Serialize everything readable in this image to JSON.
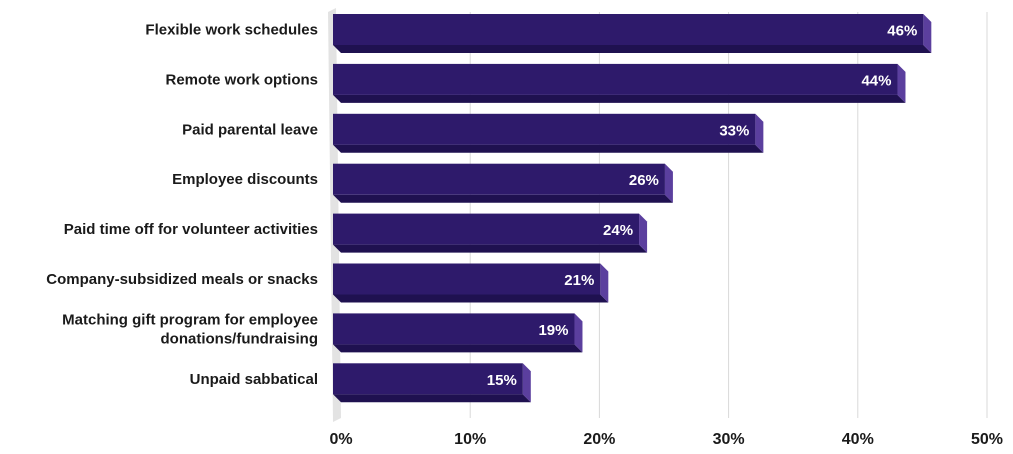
{
  "chart_data": {
    "type": "bar",
    "orientation": "horizontal",
    "categories": [
      "Flexible work schedules",
      "Remote work options",
      "Paid parental leave",
      "Employee discounts",
      "Paid time off for volunteer activities",
      "Company-subsidized meals or snacks",
      "Matching gift program for employee donations/fundraising",
      "Unpaid sabbatical"
    ],
    "category_lines": [
      [
        "Flexible work schedules"
      ],
      [
        "Remote work options"
      ],
      [
        "Paid parental leave"
      ],
      [
        "Employee discounts"
      ],
      [
        "Paid time off for volunteer activities"
      ],
      [
        "Company-subsidized meals or snacks"
      ],
      [
        "Matching gift program for employee",
        "donations/fundraising"
      ],
      [
        "Unpaid sabbatical"
      ]
    ],
    "values": [
      46,
      44,
      33,
      26,
      24,
      21,
      19,
      15
    ],
    "data_labels": [
      "46%",
      "44%",
      "33%",
      "26%",
      "24%",
      "21%",
      "19%",
      "15%"
    ],
    "xlim": [
      0,
      50
    ],
    "x_ticks": [
      0,
      10,
      20,
      30,
      40,
      50
    ],
    "x_tick_labels": [
      "0%",
      "10%",
      "20%",
      "30%",
      "40%",
      "50%"
    ],
    "grid": true,
    "legend": "none",
    "colors": {
      "bar_face": "#2e1a6b",
      "bar_side": "#5b3f9e",
      "bar_bottom": "#1f1150",
      "grid": "#d9d9d9",
      "floor": "#e3e3e3"
    }
  }
}
